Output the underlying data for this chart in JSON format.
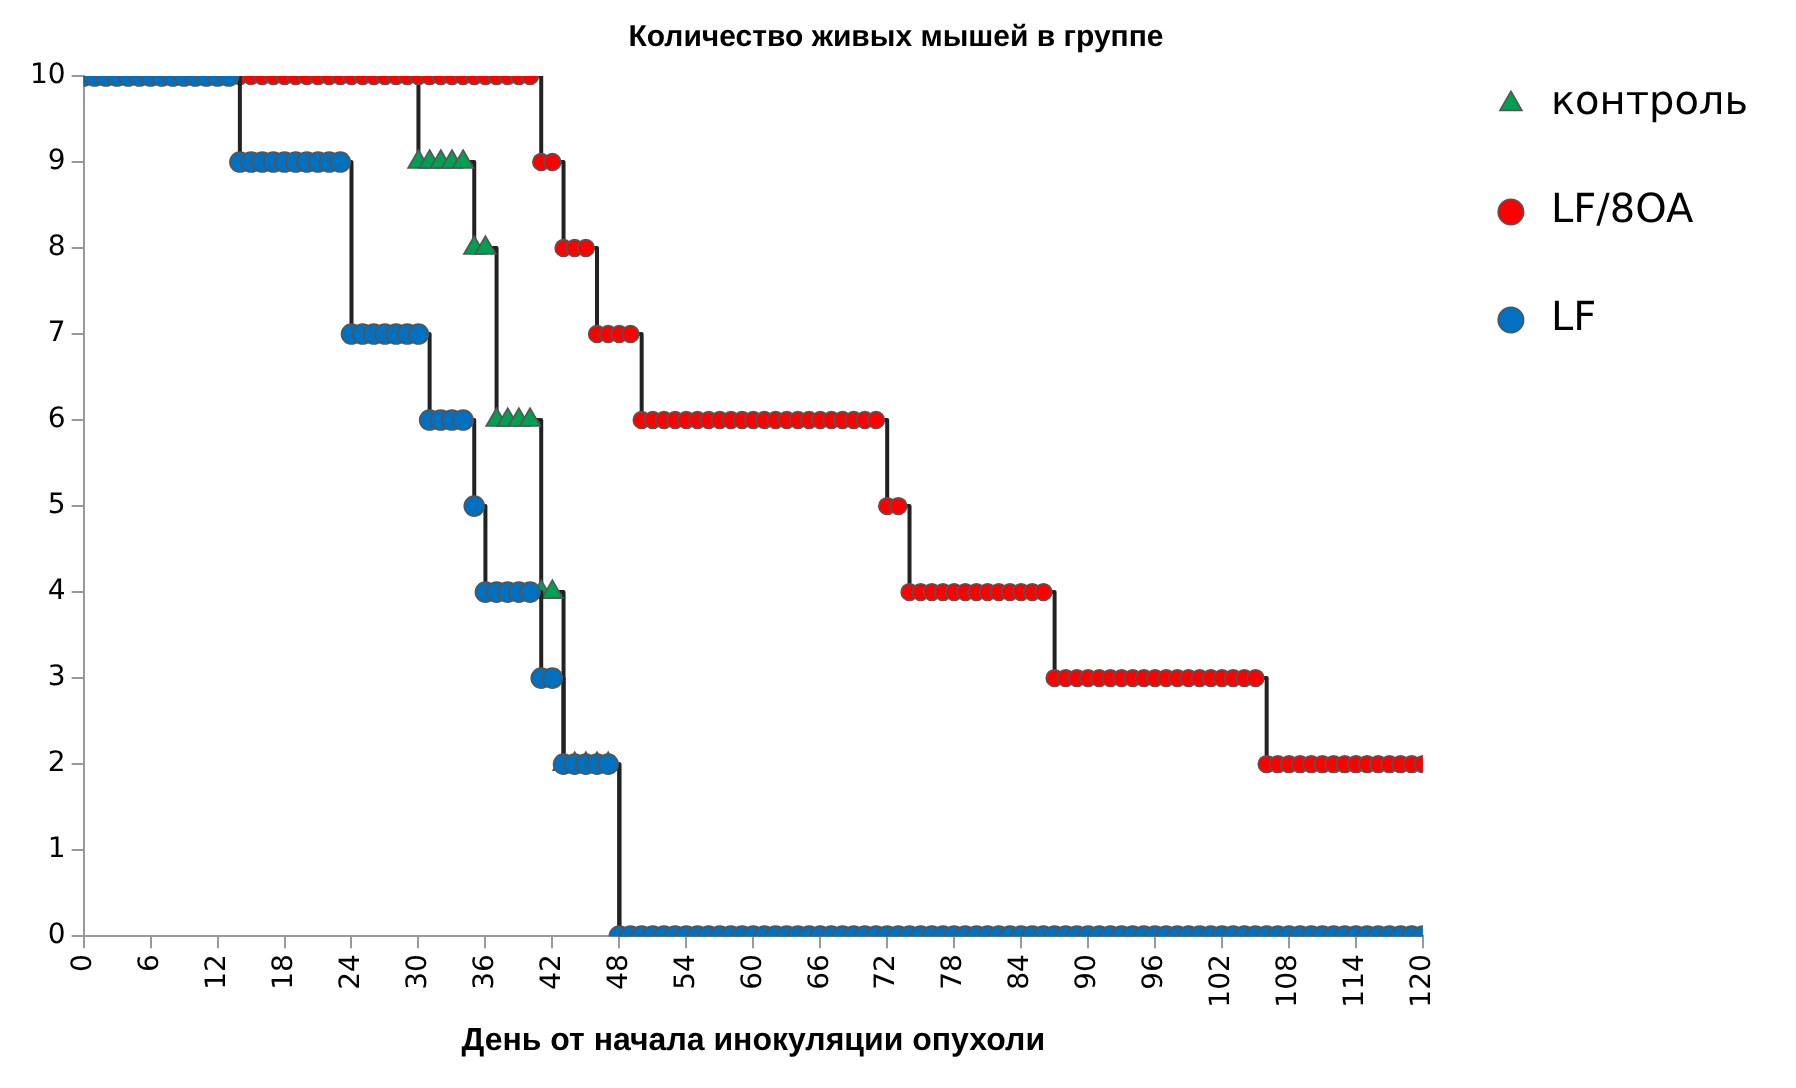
{
  "chart_data": {
    "type": "step",
    "title": "Количество живых мышей в группе",
    "xlabel": "День от начала инокуляции опухоли",
    "x": [
      0,
      1,
      2,
      3,
      4,
      5,
      6,
      7,
      8,
      9,
      10,
      11,
      12,
      13,
      14,
      15,
      16,
      17,
      18,
      19,
      20,
      21,
      22,
      23,
      24,
      25,
      26,
      27,
      28,
      29,
      30,
      31,
      32,
      33,
      34,
      35,
      36,
      37,
      38,
      39,
      40,
      41,
      42,
      43,
      44,
      45,
      46,
      47,
      48,
      49,
      50,
      51,
      52,
      53,
      54,
      55,
      56,
      57,
      58,
      59,
      60,
      61,
      62,
      63,
      64,
      65,
      66,
      67,
      68,
      69,
      70,
      71,
      72,
      73,
      74,
      75,
      76,
      77,
      78,
      79,
      80,
      81,
      82,
      83,
      84,
      85,
      86,
      87,
      88,
      89,
      90,
      91,
      92,
      93,
      94,
      95,
      96,
      97,
      98,
      99,
      100,
      101,
      102,
      103,
      104,
      105,
      106,
      107,
      108,
      109,
      110,
      111,
      112,
      113,
      114,
      115,
      116,
      117,
      118,
      119,
      120
    ],
    "series": [
      {
        "name": "контроль",
        "color": "#00a050",
        "marker": "triangle",
        "values": [
          10,
          10,
          10,
          10,
          10,
          10,
          10,
          10,
          10,
          10,
          10,
          10,
          10,
          10,
          10,
          10,
          10,
          10,
          10,
          10,
          10,
          10,
          10,
          10,
          10,
          10,
          10,
          10,
          10,
          10,
          9,
          9,
          9,
          9,
          9,
          8,
          8,
          6,
          6,
          6,
          6,
          4,
          4,
          2,
          2,
          2,
          2,
          2,
          0,
          null,
          null,
          null,
          null,
          null,
          null,
          null,
          null,
          null,
          null,
          null,
          null,
          null,
          null,
          null,
          null,
          null,
          null,
          null,
          null,
          null,
          null,
          null,
          null,
          null,
          null,
          null,
          null,
          null,
          null,
          null,
          null,
          null,
          null,
          null,
          null,
          null,
          null,
          null,
          null,
          null,
          null,
          null,
          null,
          null,
          null,
          null,
          null,
          null,
          null,
          null,
          null,
          null,
          null,
          null,
          null,
          null,
          null,
          null,
          null,
          null,
          null,
          null,
          null,
          null,
          null,
          null,
          null,
          null,
          null,
          null,
          null
        ]
      },
      {
        "name": "LF/8OA",
        "color": "#ff0000",
        "marker": "circle",
        "values": [
          10,
          10,
          10,
          10,
          10,
          10,
          10,
          10,
          10,
          10,
          10,
          10,
          10,
          10,
          10,
          10,
          10,
          10,
          10,
          10,
          10,
          10,
          10,
          10,
          10,
          10,
          10,
          10,
          10,
          10,
          10,
          10,
          10,
          10,
          10,
          10,
          10,
          10,
          10,
          10,
          10,
          9,
          9,
          8,
          8,
          8,
          7,
          7,
          7,
          7,
          6,
          6,
          6,
          6,
          6,
          6,
          6,
          6,
          6,
          6,
          6,
          6,
          6,
          6,
          6,
          6,
          6,
          6,
          6,
          6,
          6,
          6,
          5,
          5,
          4,
          4,
          4,
          4,
          4,
          4,
          4,
          4,
          4,
          4,
          4,
          4,
          4,
          3,
          3,
          3,
          3,
          3,
          3,
          3,
          3,
          3,
          3,
          3,
          3,
          3,
          3,
          3,
          3,
          3,
          3,
          3,
          2,
          2,
          2,
          2,
          2,
          2,
          2,
          2,
          2,
          2,
          2,
          2,
          2,
          2,
          2
        ]
      },
      {
        "name": "LF",
        "color": "#0070c0",
        "marker": "circle",
        "values": [
          10,
          10,
          10,
          10,
          10,
          10,
          10,
          10,
          10,
          10,
          10,
          10,
          10,
          10,
          9,
          9,
          9,
          9,
          9,
          9,
          9,
          9,
          9,
          9,
          7,
          7,
          7,
          7,
          7,
          7,
          7,
          6,
          6,
          6,
          6,
          5,
          4,
          4,
          4,
          4,
          4,
          3,
          3,
          2,
          2,
          2,
          2,
          2,
          0,
          0,
          0,
          0,
          0,
          0,
          0,
          0,
          0,
          0,
          0,
          0,
          0,
          0,
          0,
          0,
          0,
          0,
          0,
          0,
          0,
          0,
          0,
          0,
          0,
          0,
          0,
          0,
          0,
          0,
          0,
          0,
          0,
          0,
          0,
          0,
          0,
          0,
          0,
          0,
          0,
          0,
          0,
          0,
          0,
          0,
          0,
          0,
          0,
          0,
          0,
          0,
          0,
          0,
          0,
          0,
          0,
          0,
          0,
          0,
          0,
          0,
          0,
          0,
          0,
          0,
          0,
          0,
          0,
          0,
          0,
          0,
          0
        ]
      }
    ],
    "xlim": [
      0,
      120
    ],
    "xticks": [
      0,
      6,
      12,
      18,
      24,
      30,
      36,
      42,
      48,
      54,
      60,
      66,
      72,
      78,
      84,
      90,
      96,
      102,
      108,
      114,
      120
    ],
    "ylim": [
      0,
      10
    ],
    "yticks": [
      0,
      1,
      2,
      3,
      4,
      5,
      6,
      7,
      8,
      9,
      10
    ],
    "grid": false,
    "legend": "right"
  }
}
